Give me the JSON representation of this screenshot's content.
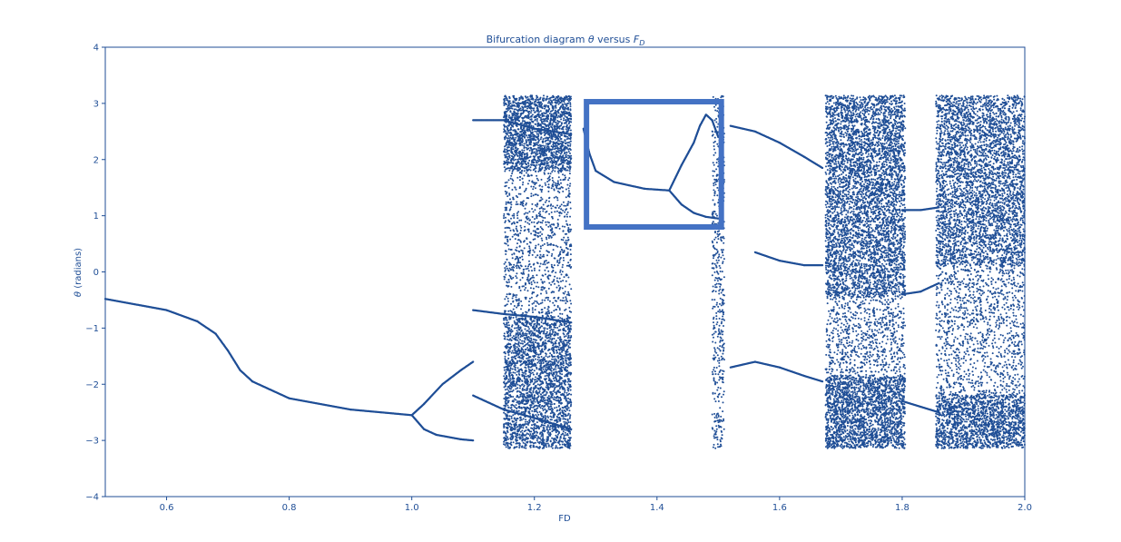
{
  "chart_data": {
    "type": "scatter",
    "title": {
      "prefix": "Bifurcation diagram  ",
      "theta": "θ",
      "middle": " versus ",
      "F": "F",
      "sub": "D"
    },
    "xlabel": "FD",
    "ylabel": {
      "theta": "θ",
      "text": " (radians)"
    },
    "xlim": [
      0.5,
      2.0
    ],
    "ylim": [
      -4,
      4
    ],
    "xticks": [
      0.6,
      0.8,
      1.0,
      1.2,
      1.4,
      1.6,
      1.8,
      2.0
    ],
    "xtick_labels": [
      "0.6",
      "0.8",
      "1.0",
      "1.2",
      "1.4",
      "1.6",
      "1.8",
      "2.0"
    ],
    "yticks": [
      -4,
      -3,
      -2,
      -1,
      0,
      1,
      2,
      3,
      4
    ],
    "ytick_labels": [
      "−4",
      "−3",
      "−2",
      "−1",
      "0",
      "1",
      "2",
      "3",
      "4"
    ],
    "grid": false,
    "colors": {
      "points": "#1f4e96",
      "axes": "#1f4e96",
      "highlight": "#4472c4"
    },
    "highlight_box": {
      "x0": 1.285,
      "x1": 1.505,
      "y0": 0.8,
      "y1": 3.03
    },
    "branches": [
      {
        "name": "stable-branch",
        "points": [
          [
            0.5,
            -0.48
          ],
          [
            0.6,
            -0.68
          ],
          [
            0.65,
            -0.88
          ],
          [
            0.68,
            -1.1
          ],
          [
            0.7,
            -1.4
          ],
          [
            0.72,
            -1.75
          ],
          [
            0.74,
            -1.95
          ],
          [
            0.8,
            -2.25
          ],
          [
            0.9,
            -2.45
          ],
          [
            1.0,
            -2.55
          ]
        ]
      },
      {
        "name": "period-two-lower",
        "points": [
          [
            1.0,
            -2.55
          ],
          [
            1.02,
            -2.8
          ],
          [
            1.04,
            -2.9
          ],
          [
            1.08,
            -2.98
          ],
          [
            1.1,
            -3.0
          ]
        ]
      },
      {
        "name": "period-two-upper",
        "points": [
          [
            1.0,
            -2.55
          ],
          [
            1.02,
            -2.35
          ],
          [
            1.05,
            -2.0
          ],
          [
            1.08,
            -1.75
          ],
          [
            1.1,
            -1.6
          ]
        ]
      },
      {
        "name": "upper-orbit-a",
        "points": [
          [
            1.1,
            2.7
          ],
          [
            1.15,
            2.7
          ],
          [
            1.2,
            2.55
          ],
          [
            1.26,
            2.45
          ]
        ]
      },
      {
        "name": "lower-orbit-a",
        "points": [
          [
            1.1,
            -0.68
          ],
          [
            1.15,
            -0.75
          ],
          [
            1.2,
            -0.8
          ],
          [
            1.26,
            -0.9
          ]
        ]
      },
      {
        "name": "lower-orbit-b",
        "points": [
          [
            1.1,
            -2.2
          ],
          [
            1.15,
            -2.45
          ],
          [
            1.2,
            -2.6
          ],
          [
            1.26,
            -2.8
          ]
        ]
      },
      {
        "name": "window-orbit",
        "points": [
          [
            1.28,
            2.55
          ],
          [
            1.29,
            2.1
          ],
          [
            1.3,
            1.8
          ],
          [
            1.33,
            1.6
          ],
          [
            1.38,
            1.48
          ],
          [
            1.42,
            1.45
          ]
        ]
      },
      {
        "name": "window-upper-fork",
        "points": [
          [
            1.42,
            1.45
          ],
          [
            1.44,
            1.9
          ],
          [
            1.46,
            2.3
          ],
          [
            1.47,
            2.6
          ],
          [
            1.48,
            2.8
          ],
          [
            1.49,
            2.7
          ],
          [
            1.5,
            2.4
          ]
        ]
      },
      {
        "name": "window-lower-fork",
        "points": [
          [
            1.42,
            1.45
          ],
          [
            1.44,
            1.2
          ],
          [
            1.46,
            1.05
          ],
          [
            1.48,
            0.98
          ],
          [
            1.5,
            0.95
          ]
        ]
      },
      {
        "name": "orbit-upper-b",
        "points": [
          [
            1.52,
            2.6
          ],
          [
            1.56,
            2.5
          ],
          [
            1.6,
            2.3
          ],
          [
            1.64,
            2.05
          ],
          [
            1.67,
            1.85
          ]
        ]
      },
      {
        "name": "orbit-mid-b",
        "points": [
          [
            1.56,
            0.35
          ],
          [
            1.6,
            0.2
          ],
          [
            1.64,
            0.12
          ],
          [
            1.67,
            0.12
          ]
        ]
      },
      {
        "name": "orbit-lower-b",
        "points": [
          [
            1.52,
            -1.7
          ],
          [
            1.56,
            -1.6
          ],
          [
            1.6,
            -1.7
          ],
          [
            1.64,
            -1.85
          ],
          [
            1.67,
            -1.95
          ]
        ]
      },
      {
        "name": "orbit-upper-c",
        "points": [
          [
            1.8,
            1.1
          ],
          [
            1.83,
            1.1
          ],
          [
            1.86,
            1.15
          ]
        ]
      },
      {
        "name": "orbit-mid-c",
        "points": [
          [
            1.8,
            -0.4
          ],
          [
            1.83,
            -0.35
          ],
          [
            1.86,
            -0.2
          ]
        ]
      },
      {
        "name": "orbit-lower-c",
        "points": [
          [
            1.8,
            -2.3
          ],
          [
            1.83,
            -2.4
          ],
          [
            1.86,
            -2.5
          ]
        ]
      }
    ],
    "chaotic_bands": [
      {
        "name": "chaos-band-a",
        "x": [
          1.15,
          1.26
        ],
        "y": [
          -3.14,
          3.14
        ],
        "count": 2400,
        "seed": 11
      },
      {
        "name": "chaos-band-a-dense-top",
        "x": [
          1.15,
          1.26
        ],
        "y": [
          1.8,
          3.14
        ],
        "count": 1400,
        "seed": 12
      },
      {
        "name": "chaos-band-a-dense-bottom",
        "x": [
          1.15,
          1.26
        ],
        "y": [
          -3.14,
          -0.8
        ],
        "count": 1800,
        "seed": 13
      },
      {
        "name": "chaos-band-b",
        "x": [
          1.49,
          1.51
        ],
        "y": [
          -3.14,
          3.14
        ],
        "count": 500,
        "seed": 14
      },
      {
        "name": "chaos-band-c",
        "x": [
          1.675,
          1.805
        ],
        "y": [
          -3.14,
          3.14
        ],
        "count": 3200,
        "seed": 15
      },
      {
        "name": "chaos-band-c-dense-top",
        "x": [
          1.675,
          1.805
        ],
        "y": [
          1.0,
          3.14
        ],
        "count": 1800,
        "seed": 16
      },
      {
        "name": "chaos-band-c-dense-mid",
        "x": [
          1.675,
          1.805
        ],
        "y": [
          -0.45,
          1.0
        ],
        "count": 1200,
        "seed": 17
      },
      {
        "name": "chaos-band-c-dense-bottom",
        "x": [
          1.675,
          1.805
        ],
        "y": [
          -3.14,
          -1.85
        ],
        "count": 1500,
        "seed": 18
      },
      {
        "name": "chaos-band-d",
        "x": [
          1.855,
          2.0
        ],
        "y": [
          -3.14,
          3.14
        ],
        "count": 3200,
        "seed": 19
      },
      {
        "name": "chaos-band-d-dense-top",
        "x": [
          1.855,
          2.0
        ],
        "y": [
          0.1,
          3.14
        ],
        "count": 2400,
        "seed": 20
      },
      {
        "name": "chaos-band-d-dense-bottom",
        "x": [
          1.855,
          2.0
        ],
        "y": [
          -3.14,
          -2.2
        ],
        "count": 1200,
        "seed": 21
      }
    ]
  }
}
